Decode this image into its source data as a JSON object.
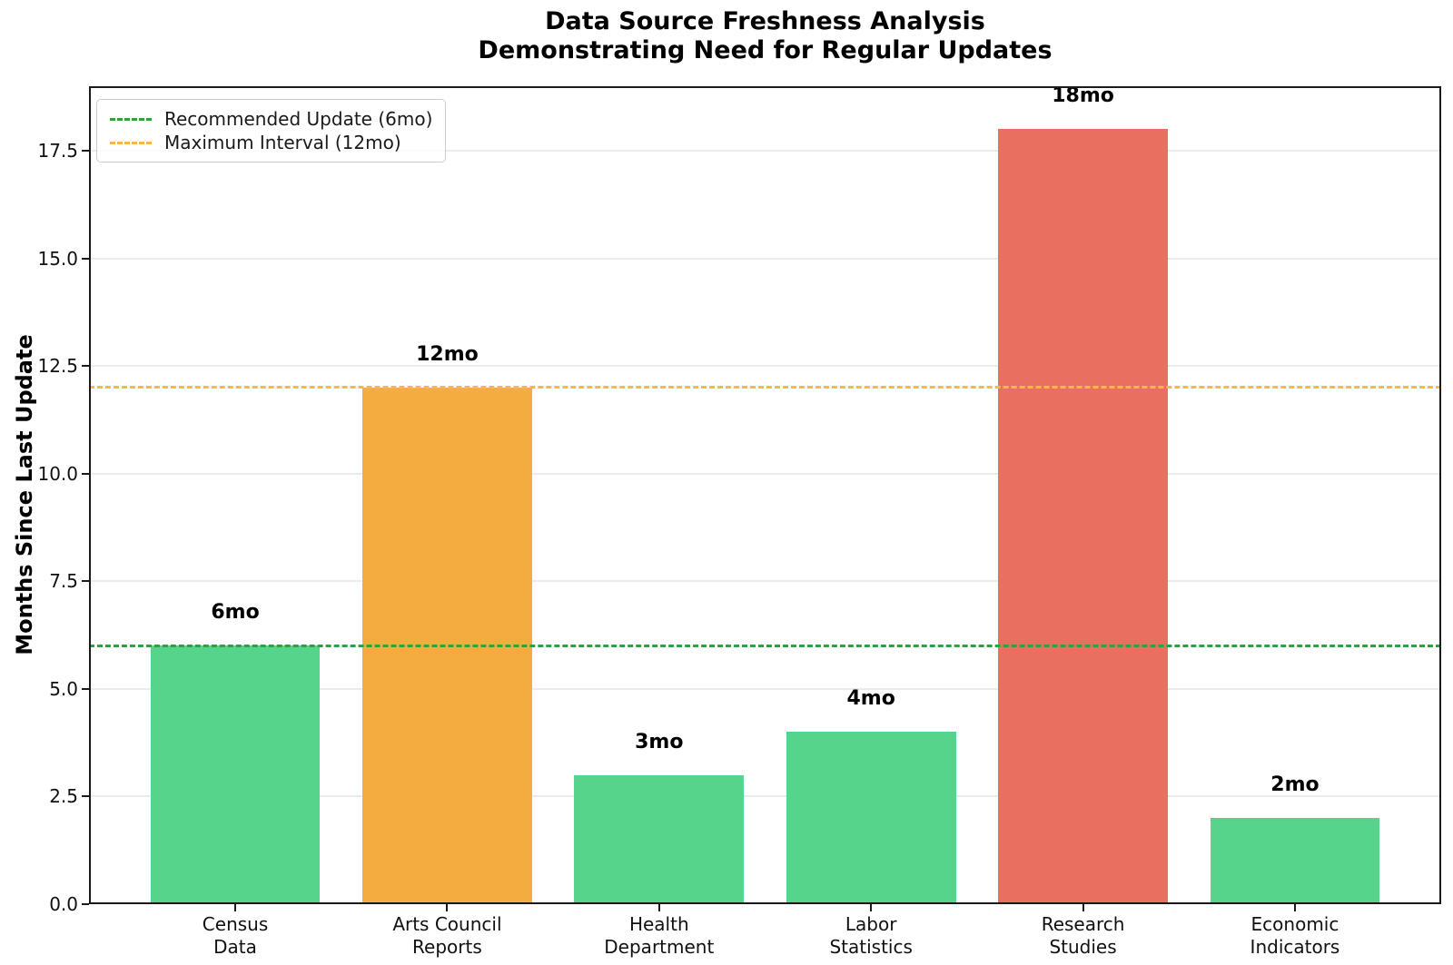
{
  "chart": {
    "title_line1": "Data Source Freshness Analysis",
    "title_line2": "Demonstrating Need for Regular Updates",
    "y_axis_label": "Months Since Last Update"
  },
  "chart_data": {
    "type": "bar",
    "title": "Data Source Freshness Analysis",
    "subtitle": "Demonstrating Need for Regular Updates",
    "xlabel": "",
    "ylabel": "Months Since Last Update",
    "categories": [
      "Census\nData",
      "Arts Council\nReports",
      "Health\nDepartment",
      "Labor\nStatistics",
      "Research\nStudies",
      "Economic\nIndicators"
    ],
    "values": [
      6,
      12,
      3,
      4,
      18,
      2
    ],
    "bar_labels": [
      "6mo",
      "12mo",
      "3mo",
      "4mo",
      "18mo",
      "2mo"
    ],
    "bar_colors": [
      "#57d48b",
      "#f4ac40",
      "#57d48b",
      "#57d48b",
      "#e97061",
      "#57d48b"
    ],
    "ylim": [
      0,
      19
    ],
    "yticks": [
      0.0,
      2.5,
      5.0,
      7.5,
      10.0,
      12.5,
      15.0,
      17.5
    ],
    "grid": true,
    "grid_color": "#ebebeb",
    "legend_position": "upper left",
    "reference_lines": [
      {
        "label": "Recommended Update (6mo)",
        "y": 6,
        "color": "#30a040",
        "style": "dashed"
      },
      {
        "label": "Maximum Interval (12mo)",
        "y": 12,
        "color": "#ffb649",
        "style": "dashed"
      }
    ]
  }
}
